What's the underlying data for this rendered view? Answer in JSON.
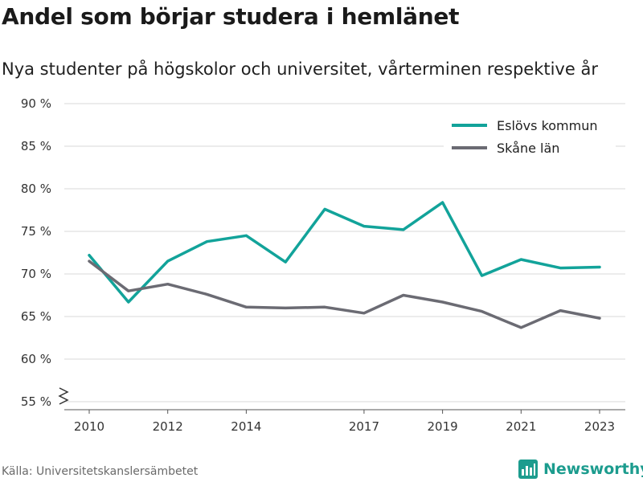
{
  "header": {
    "title": "Andel som börjar studera i hemlänet",
    "subtitle": "Nya studenter på högskolor och universitet, vårterminen respektive år"
  },
  "footer": {
    "source": "Källa: Universitetskanslersämbetet",
    "brand": "Newsworthy",
    "brand_color": "#1c9c8e"
  },
  "chart_data": {
    "type": "line",
    "title": "Andel som börjar studera i hemlänet",
    "subtitle": "Nya studenter på högskolor och universitet, vårterminen respektive år",
    "x": [
      2010,
      2011,
      2012,
      2013,
      2014,
      2015,
      2016,
      2017,
      2018,
      2019,
      2020,
      2021,
      2022,
      2023
    ],
    "x_ticks": [
      2010,
      2012,
      2014,
      2017,
      2019,
      2021,
      2023
    ],
    "ylim": [
      55,
      90
    ],
    "y_ticks": [
      55,
      60,
      65,
      70,
      75,
      80,
      85,
      90
    ],
    "y_tick_labels": [
      "55 %",
      "60 %",
      "65 %",
      "70 %",
      "75 %",
      "80 %",
      "85 %",
      "90 %"
    ],
    "y_axis_break": true,
    "grid": true,
    "legend_position": "top-right",
    "series": [
      {
        "name": "Eslövs kommun",
        "color": "#12a39a",
        "values": [
          72.2,
          66.7,
          71.5,
          73.8,
          74.5,
          71.4,
          77.6,
          75.6,
          75.2,
          78.4,
          69.8,
          71.7,
          70.7,
          70.8
        ]
      },
      {
        "name": "Skåne län",
        "color": "#6b6b73",
        "values": [
          71.5,
          68.0,
          68.8,
          67.6,
          66.1,
          66.0,
          66.1,
          65.4,
          67.5,
          66.7,
          65.6,
          63.7,
          65.7,
          64.8
        ]
      }
    ]
  }
}
